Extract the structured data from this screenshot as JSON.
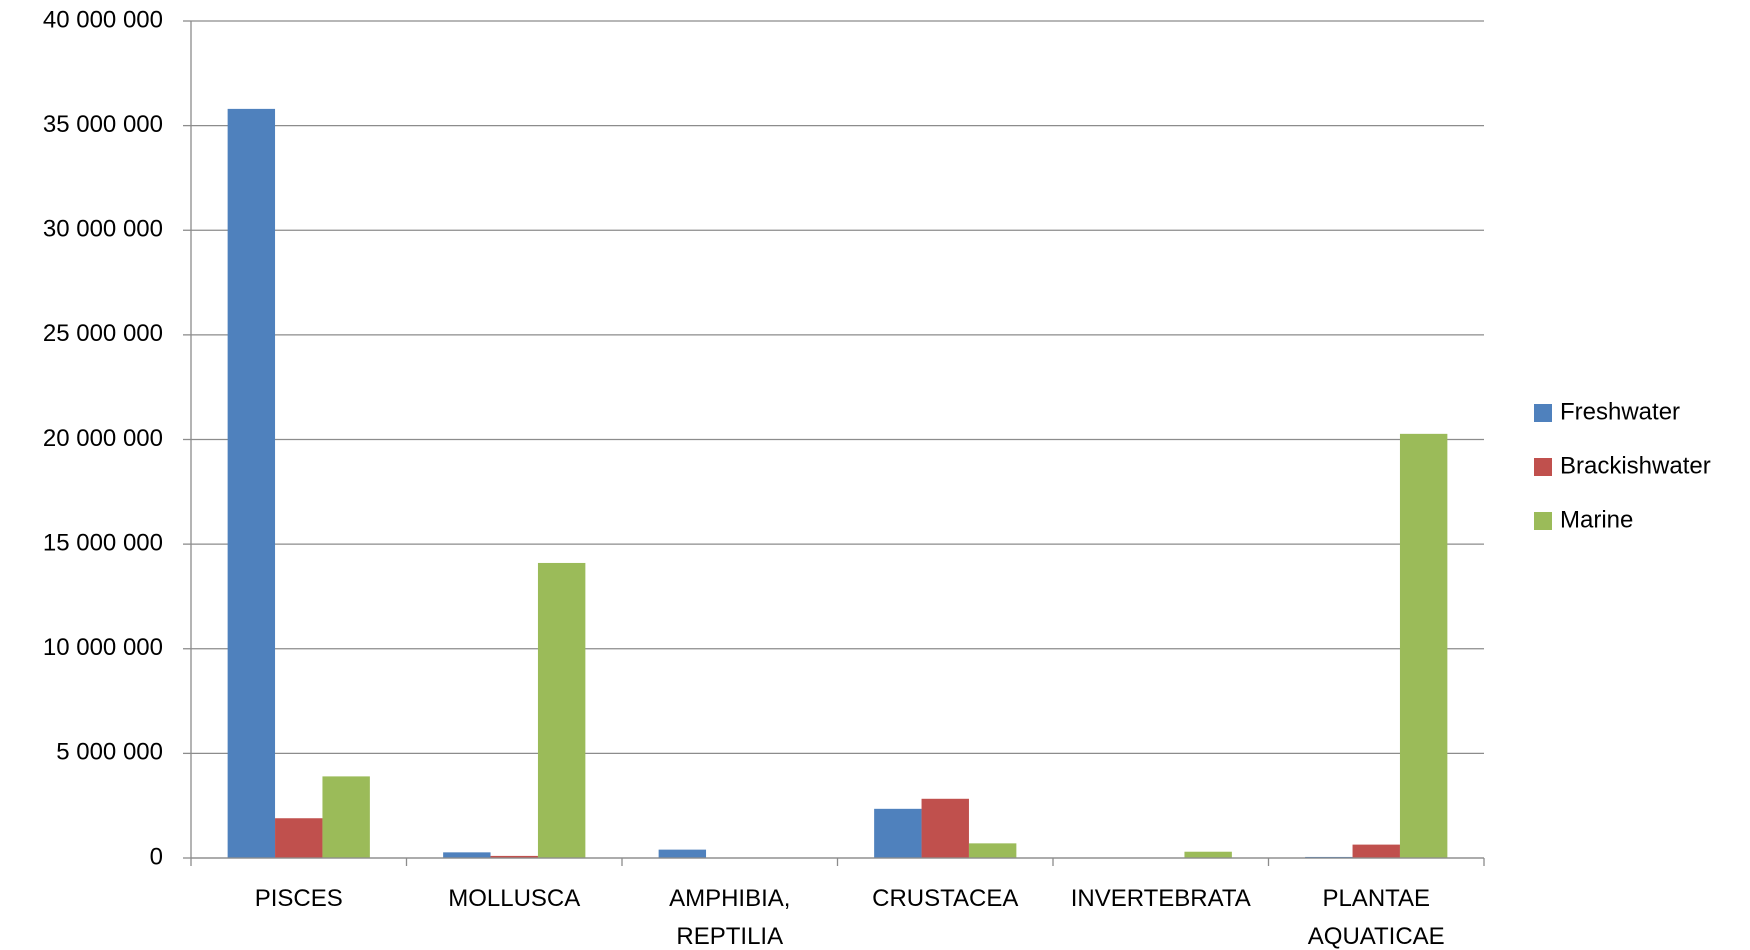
{
  "chart_data": {
    "type": "bar",
    "categories": [
      "PISCES",
      "MOLLUSCA",
      "AMPHIBIA, REPTILIA",
      "CRUSTACEA",
      "INVERTEBRATA",
      "PLANTAE AQUATICAE"
    ],
    "series": [
      {
        "name": "Freshwater",
        "color": "#4f81bd",
        "values": [
          35800000,
          270000,
          400000,
          2350000,
          0,
          50000
        ]
      },
      {
        "name": "Brackishwater",
        "color": "#c0504d",
        "values": [
          1900000,
          100000,
          0,
          2830000,
          0,
          640000
        ]
      },
      {
        "name": "Marine",
        "color": "#9bbb59",
        "values": [
          3900000,
          14100000,
          0,
          700000,
          300000,
          20270000
        ]
      }
    ],
    "ylim": [
      0,
      40000000
    ],
    "yticks": [
      0,
      {
        "value": 5000000,
        "label": "5 000 000"
      },
      {
        "value": 10000000,
        "label": "10 000 000"
      },
      {
        "value": 15000000,
        "label": "15 000 000"
      },
      {
        "value": 20000000,
        "label": "20 000 000"
      },
      {
        "value": 25000000,
        "label": "25 000 000"
      },
      {
        "value": 30000000,
        "label": "30 000 000"
      },
      {
        "value": 35000000,
        "label": "35 000 000"
      },
      {
        "value": 40000000,
        "label": "40 000 000"
      }
    ],
    "grid": true,
    "legend": "right"
  }
}
